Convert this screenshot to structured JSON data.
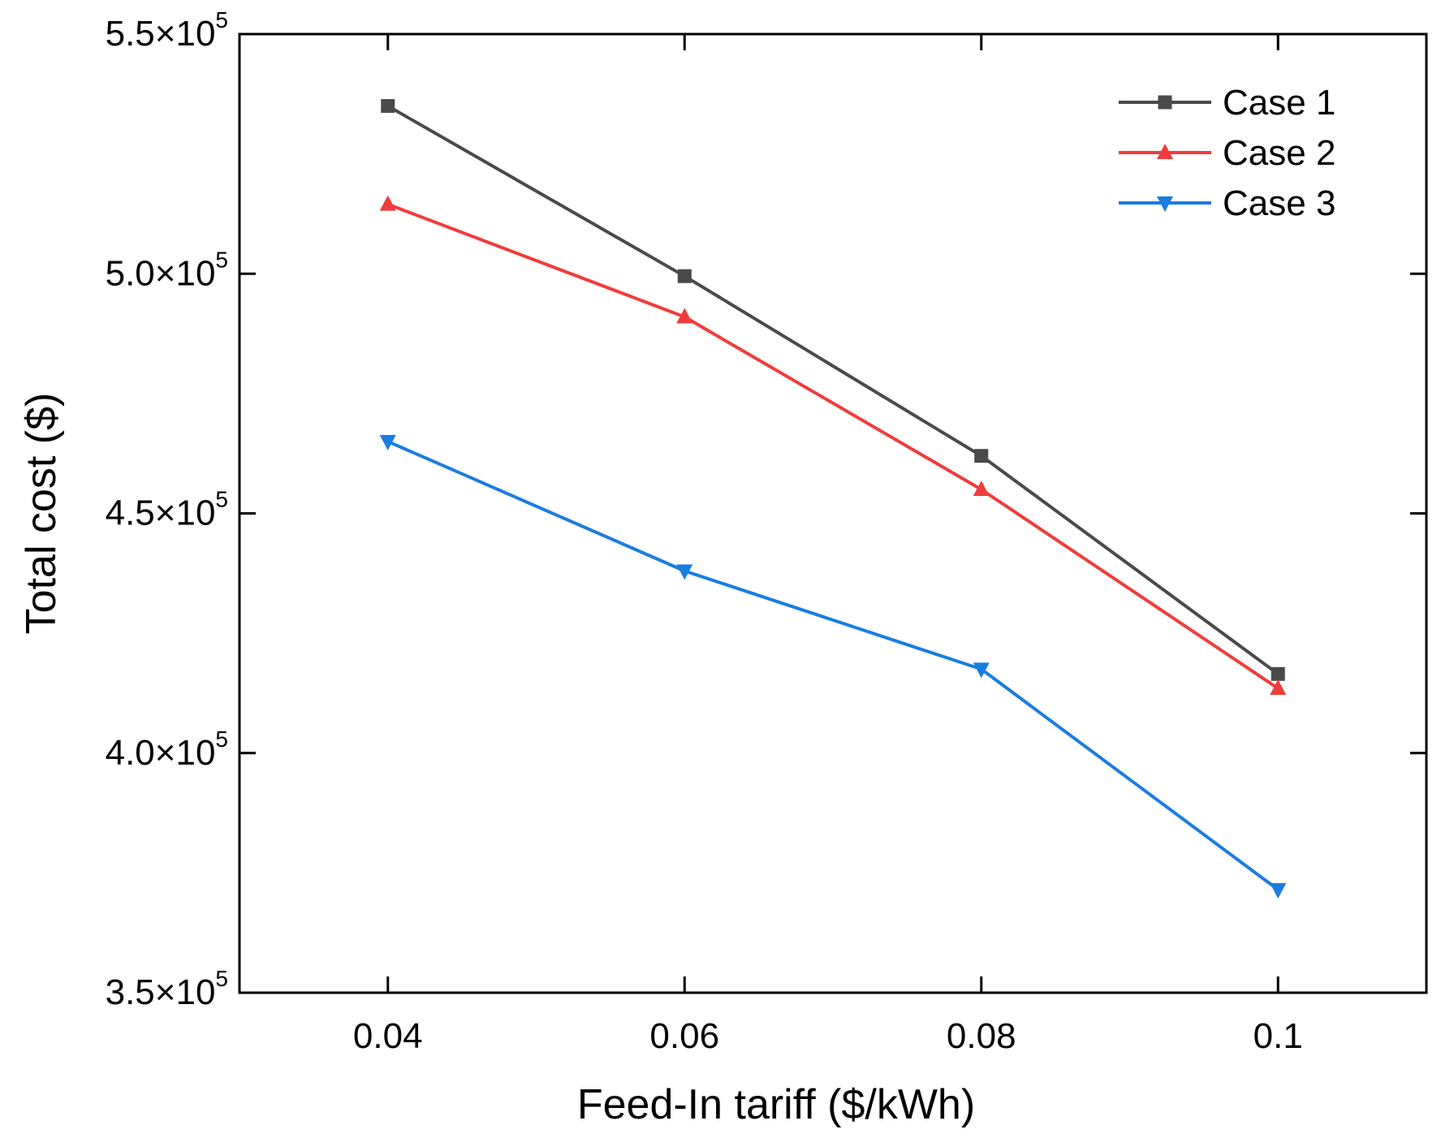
{
  "chart_data": {
    "type": "line",
    "title": "",
    "xlabel": "Feed-In tariff ($/kWh)",
    "ylabel": "Total cost ($)",
    "x": [
      0.04,
      0.06,
      0.08,
      0.1
    ],
    "xlim": [
      0.03,
      0.11
    ],
    "ylim": [
      350000,
      550000
    ],
    "grid": false,
    "legend_position": "top-right",
    "x_ticks": [
      {
        "value": 0.04,
        "label": "0.04"
      },
      {
        "value": 0.06,
        "label": "0.06"
      },
      {
        "value": 0.08,
        "label": "0.08"
      },
      {
        "value": 0.1,
        "label": "0.1"
      }
    ],
    "y_ticks": [
      {
        "value": 350000,
        "mantissa": "3.5×10",
        "exponent": "5"
      },
      {
        "value": 400000,
        "mantissa": "4.0×10",
        "exponent": "5"
      },
      {
        "value": 450000,
        "mantissa": "4.5×10",
        "exponent": "5"
      },
      {
        "value": 500000,
        "mantissa": "5.0×10",
        "exponent": "5"
      },
      {
        "value": 550000,
        "mantissa": "5.5×10",
        "exponent": "5"
      }
    ],
    "series": [
      {
        "name": "Case 1",
        "color": "#4a4a4a",
        "marker": "square",
        "values": [
          535000,
          499500,
          462000,
          416500
        ]
      },
      {
        "name": "Case 2",
        "color": "#f03c3c",
        "marker": "triangle-up",
        "values": [
          514500,
          491000,
          455000,
          413500
        ]
      },
      {
        "name": "Case 3",
        "color": "#1a7de0",
        "marker": "triangle-down",
        "values": [
          465000,
          438000,
          417500,
          371500
        ]
      }
    ]
  }
}
